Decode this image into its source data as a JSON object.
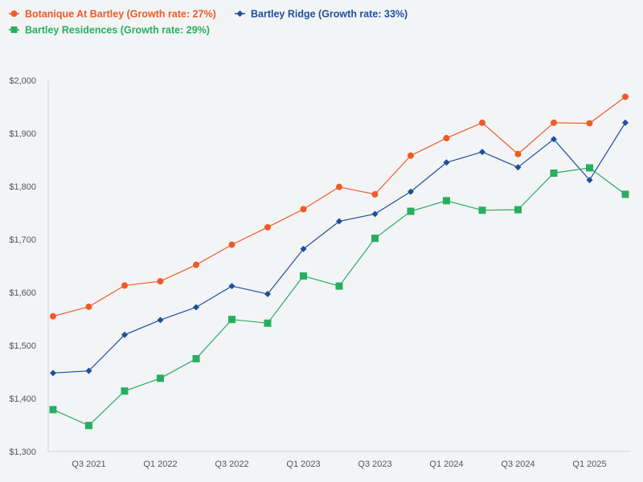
{
  "chart_data": {
    "type": "line",
    "title": "",
    "xlabel": "",
    "ylabel": "",
    "ylim": [
      1300,
      2000
    ],
    "y_ticks": [
      1300,
      1400,
      1500,
      1600,
      1700,
      1800,
      1900,
      2000
    ],
    "y_tick_labels": [
      "$1,300",
      "$1,400",
      "$1,500",
      "$1,600",
      "$1,700",
      "$1,800",
      "$1,900",
      "$2,000"
    ],
    "x_count": 17,
    "x_tick_labels": [
      {
        "index": 1,
        "label": "Q3 2021"
      },
      {
        "index": 3,
        "label": "Q1 2022"
      },
      {
        "index": 5,
        "label": "Q3 2022"
      },
      {
        "index": 7,
        "label": "Q1 2023"
      },
      {
        "index": 9,
        "label": "Q3 2023"
      },
      {
        "index": 11,
        "label": "Q1 2024"
      },
      {
        "index": 13,
        "label": "Q3 2024"
      },
      {
        "index": 15,
        "label": "Q1 2025"
      }
    ],
    "grid": false,
    "legend_position": "top-left",
    "series": [
      {
        "name": "Botanique At Bartley (Growth rate: 27%)",
        "color": "#f05a28",
        "marker": "circle",
        "values": [
          1555,
          1573,
          1613,
          1621,
          1652,
          1690,
          1723,
          1757,
          1799,
          1785,
          1858,
          1891,
          1920,
          1861,
          1920,
          1919,
          1969
        ]
      },
      {
        "name": "Bartley Ridge (Growth rate: 33%)",
        "color": "#1f4e9c",
        "marker": "diamond",
        "values": [
          1448,
          1452,
          1520,
          1548,
          1572,
          1612,
          1597,
          1682,
          1734,
          1748,
          1790,
          1845,
          1865,
          1836,
          1889,
          1812,
          1920
        ]
      },
      {
        "name": "Bartley Residences (Growth rate: 29%)",
        "color": "#27ae60",
        "marker": "square",
        "values": [
          1379,
          1349,
          1414,
          1438,
          1475,
          1549,
          1542,
          1631,
          1612,
          1702,
          1753,
          1773,
          1755,
          1756,
          1825,
          1835,
          1785
        ]
      }
    ]
  }
}
